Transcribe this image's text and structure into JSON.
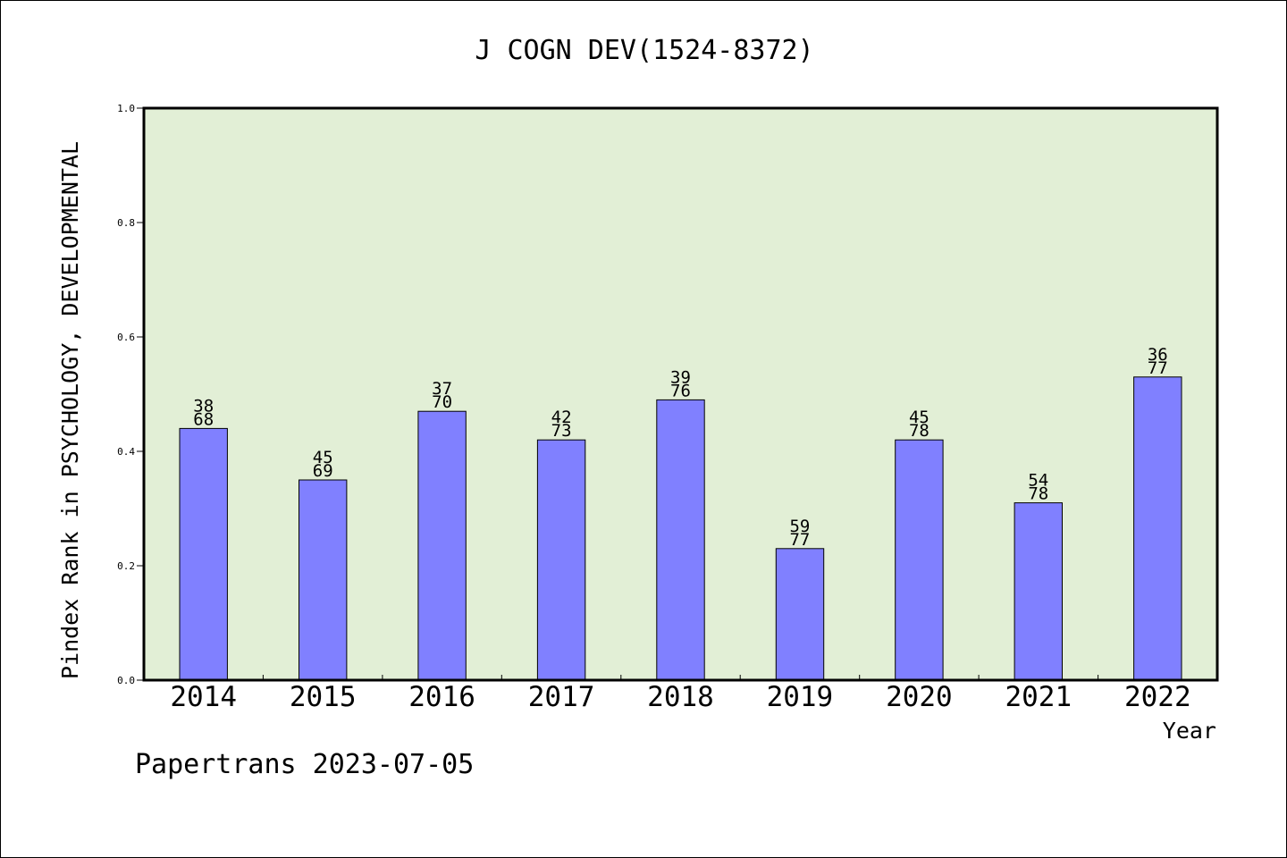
{
  "chart_data": {
    "type": "bar",
    "title": "J COGN DEV(1524-8372)",
    "xlabel": "Year",
    "ylabel": "Pindex Rank in PSYCHOLOGY, DEVELOPMENTAL",
    "ylim": [
      0,
      1.0
    ],
    "yticks": [
      "0.0",
      "0.2",
      "0.4",
      "0.6",
      "0.8",
      "1.0"
    ],
    "categories": [
      "2014",
      "2015",
      "2016",
      "2017",
      "2018",
      "2019",
      "2020",
      "2021",
      "2022"
    ],
    "values": [
      0.44,
      0.35,
      0.47,
      0.42,
      0.49,
      0.23,
      0.42,
      0.31,
      0.53
    ],
    "label_top": [
      "38",
      "45",
      "37",
      "42",
      "39",
      "59",
      "45",
      "54",
      "36"
    ],
    "label_bottom": [
      "68",
      "69",
      "70",
      "73",
      "76",
      "77",
      "78",
      "78",
      "77"
    ],
    "grid": false,
    "colors": {
      "bar": "#8080ff",
      "plot_background": "#e2efd6",
      "axes": "#000000"
    }
  },
  "footer": {
    "text": "Papertrans 2023-07-05"
  }
}
